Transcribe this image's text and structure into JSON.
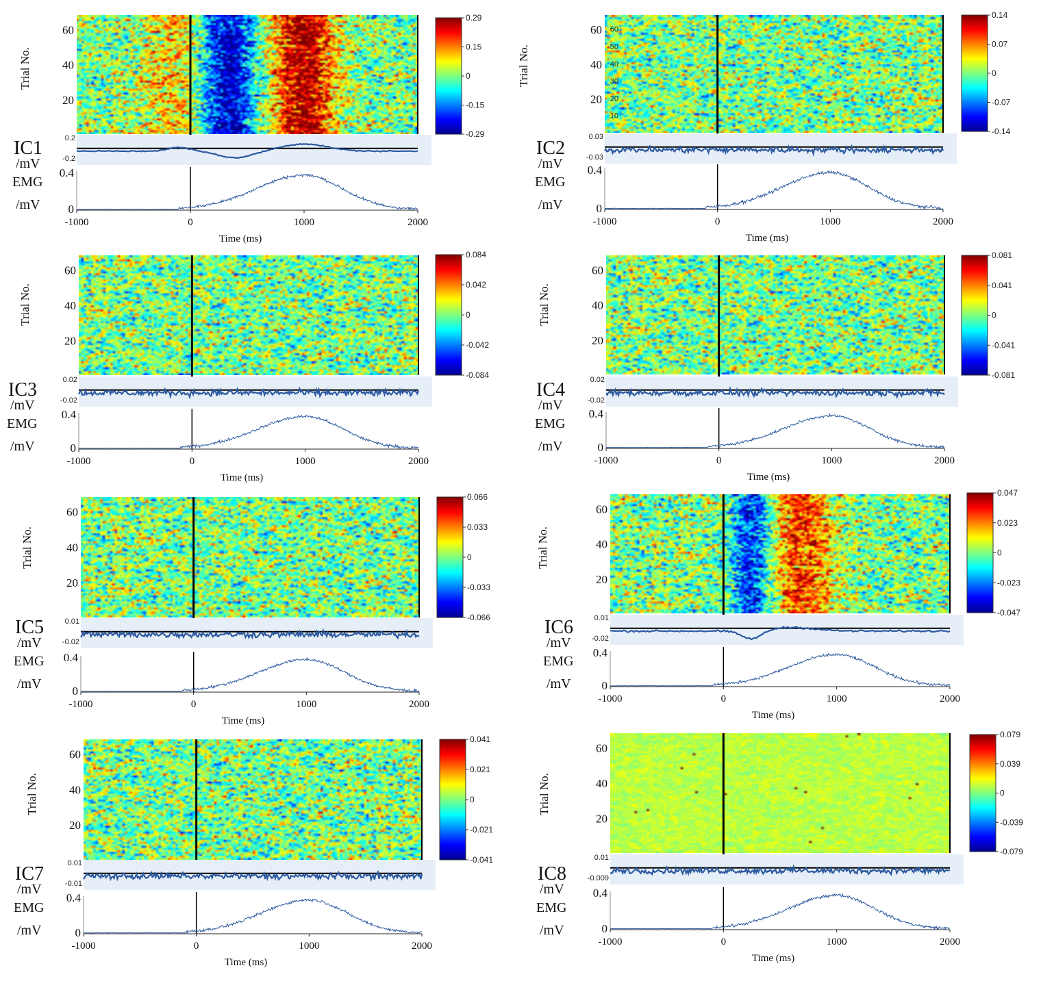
{
  "figure": {
    "panels": [
      {
        "component": "IC1",
        "unit": "/mV",
        "emg_label": "EMG",
        "emg_unit": "/mV",
        "trial_axis_label": "Trial No.",
        "trial_ticks": [
          "60",
          "40",
          "20"
        ],
        "colorbar_ticks": [
          "0.29",
          "0.15",
          "0",
          "-0.15",
          "-0.29"
        ],
        "erp_ticks": [
          "0.2",
          "-0.2"
        ],
        "emg_ticks": [
          "0.4",
          "0"
        ],
        "time_ticks": [
          "-1000",
          "0",
          "1000",
          "2000"
        ],
        "time_label": "Time (ms)",
        "pattern": "strong"
      },
      {
        "component": "IC2",
        "unit": "/mV",
        "emg_label": "EMG",
        "emg_unit": "/mV",
        "trial_axis_label": "Trial No.",
        "trial_ticks": [
          "60",
          "40",
          "20"
        ],
        "trial_minor_ticks": [
          "60",
          "50",
          "40",
          "30",
          "20",
          "10"
        ],
        "colorbar_ticks": [
          "0.14",
          "0.07",
          "0",
          "-0.07",
          "-0.14"
        ],
        "erp_ticks": [
          "0.03",
          "-0.03"
        ],
        "emg_ticks": [
          "0.4",
          "0"
        ],
        "time_ticks": [
          "-1000",
          "0",
          "1000",
          "2000"
        ],
        "time_label": "Time (ms)",
        "pattern": "noise"
      },
      {
        "component": "IC3",
        "unit": "/mV",
        "emg_label": "EMG",
        "emg_unit": "/mV",
        "trial_axis_label": "Trial No.",
        "trial_ticks": [
          "60",
          "40",
          "20"
        ],
        "colorbar_ticks": [
          "0.084",
          "0.042",
          "0",
          "-0.042",
          "-0.084"
        ],
        "erp_ticks": [
          "0.02",
          "-0.02"
        ],
        "emg_ticks": [
          "0.4",
          "0"
        ],
        "time_ticks": [
          "-1000",
          "0",
          "1000",
          "2000"
        ],
        "time_label": "Time (ms)",
        "pattern": "noise"
      },
      {
        "component": "IC4",
        "unit": "/mV",
        "emg_label": "EMG",
        "emg_unit": "/mV",
        "trial_axis_label": "Trial No.",
        "trial_ticks": [
          "60",
          "40",
          "20"
        ],
        "colorbar_ticks": [
          "0.081",
          "0.041",
          "0",
          "-0.041",
          "-0.081"
        ],
        "erp_ticks": [
          "0.02",
          "-0.02"
        ],
        "emg_ticks": [
          "0.4",
          "0"
        ],
        "time_ticks": [
          "-1000",
          "0",
          "1000",
          "2000"
        ],
        "time_label": "Time (ms)",
        "pattern": "noise"
      },
      {
        "component": "IC5",
        "unit": "/mV",
        "emg_label": "EMG",
        "emg_unit": "/mV",
        "trial_axis_label": "Trial No.",
        "trial_ticks": [
          "60",
          "40",
          "20"
        ],
        "colorbar_ticks": [
          "0.066",
          "0.033",
          "0",
          "-0.033",
          "-0.066"
        ],
        "erp_ticks": [
          "0.01",
          "-0.02"
        ],
        "emg_ticks": [
          "0.4",
          "0"
        ],
        "time_ticks": [
          "-1000",
          "0",
          "1000",
          "2000"
        ],
        "time_label": "Time (ms)",
        "pattern": "noise"
      },
      {
        "component": "IC6",
        "unit": "/mV",
        "emg_label": "EMG",
        "emg_unit": "/mV",
        "trial_axis_label": "Trial No.",
        "trial_ticks": [
          "60",
          "40",
          "20"
        ],
        "colorbar_ticks": [
          "0.047",
          "0.023",
          "0",
          "-0.023",
          "-0.047"
        ],
        "erp_ticks": [
          "0.01",
          "-0.02"
        ],
        "emg_ticks": [
          "0.4",
          "0"
        ],
        "time_ticks": [
          "-1000",
          "0",
          "1000",
          "2000"
        ],
        "time_label": "Time (ms)",
        "pattern": "medium"
      },
      {
        "component": "IC7",
        "unit": "/mV",
        "emg_label": "EMG",
        "emg_unit": "/mV",
        "trial_axis_label": "Trial No.",
        "trial_ticks": [
          "60",
          "40",
          "20"
        ],
        "colorbar_ticks": [
          "0.041",
          "0.021",
          "0",
          "-0.021",
          "-0.041"
        ],
        "erp_ticks": [
          "0.01",
          "-0.01"
        ],
        "emg_ticks": [
          "0.4",
          "0"
        ],
        "time_ticks": [
          "-1000",
          "0",
          "1000",
          "2000"
        ],
        "time_label": "Time (ms)",
        "pattern": "noise"
      },
      {
        "component": "IC8",
        "unit": "/mV",
        "emg_label": "EMG",
        "emg_unit": "/mV",
        "trial_axis_label": "Trial No.",
        "trial_ticks": [
          "60",
          "40",
          "20"
        ],
        "colorbar_ticks": [
          "0.079",
          "0.039",
          "0",
          "-0.039",
          "-0.079"
        ],
        "erp_ticks": [
          "0.01",
          "-0.009"
        ],
        "emg_ticks": [
          "0.4",
          "0"
        ],
        "time_ticks": [
          "-1000",
          "0",
          "1000",
          "2000"
        ],
        "time_label": "Time (ms)",
        "pattern": "flat"
      }
    ]
  },
  "chart_data": [
    {
      "type": "heatmap",
      "title": "IC1",
      "xlabel": "Time (ms)",
      "ylabel": "Trial No.",
      "xlim": [
        -1000,
        2000
      ],
      "ylim": [
        0,
        68
      ],
      "zlim": [
        -0.29,
        0.29
      ],
      "event_time": 0,
      "erp": {
        "ylabel": "IC1 /mV",
        "ylim": [
          -0.2,
          0.2
        ],
        "features": [
          {
            "time": 400,
            "value": -0.15
          },
          {
            "time": 1000,
            "value": 0.12
          }
        ]
      },
      "emg": {
        "ylabel": "EMG /mV",
        "ylim": [
          0,
          0.4
        ],
        "onset_time": -100,
        "peak_time": 1000,
        "peak_value": 0.36
      }
    },
    {
      "type": "heatmap",
      "title": "IC2",
      "xlabel": "Time (ms)",
      "ylabel": "Trial No.",
      "xlim": [
        -1000,
        2000
      ],
      "ylim": [
        0,
        68
      ],
      "zlim": [
        -0.14,
        0.14
      ],
      "event_time": 0,
      "erp": {
        "ylabel": "IC2 /mV",
        "ylim": [
          -0.03,
          0.03
        ]
      },
      "emg": {
        "ylabel": "EMG /mV",
        "ylim": [
          0,
          0.4
        ],
        "onset_time": -100,
        "peak_time": 1000,
        "peak_value": 0.36
      }
    },
    {
      "type": "heatmap",
      "title": "IC3",
      "xlabel": "Time (ms)",
      "ylabel": "Trial No.",
      "xlim": [
        -1000,
        2000
      ],
      "ylim": [
        0,
        68
      ],
      "zlim": [
        -0.084,
        0.084
      ],
      "event_time": 0,
      "erp": {
        "ylabel": "IC3 /mV",
        "ylim": [
          -0.02,
          0.02
        ]
      },
      "emg": {
        "ylabel": "EMG /mV",
        "ylim": [
          0,
          0.4
        ],
        "onset_time": -100,
        "peak_time": 1000,
        "peak_value": 0.36
      }
    },
    {
      "type": "heatmap",
      "title": "IC4",
      "xlabel": "Time (ms)",
      "ylabel": "Trial No.",
      "xlim": [
        -1000,
        2000
      ],
      "ylim": [
        0,
        68
      ],
      "zlim": [
        -0.081,
        0.081
      ],
      "event_time": 0,
      "erp": {
        "ylabel": "IC4 /mV",
        "ylim": [
          -0.02,
          0.02
        ]
      },
      "emg": {
        "ylabel": "EMG /mV",
        "ylim": [
          0,
          0.4
        ],
        "onset_time": -100,
        "peak_time": 1000,
        "peak_value": 0.36
      }
    },
    {
      "type": "heatmap",
      "title": "IC5",
      "xlabel": "Time (ms)",
      "ylabel": "Trial No.",
      "xlim": [
        -1000,
        2000
      ],
      "ylim": [
        0,
        68
      ],
      "zlim": [
        -0.066,
        0.066
      ],
      "event_time": 0,
      "erp": {
        "ylabel": "IC5 /mV",
        "ylim": [
          -0.02,
          0.01
        ]
      },
      "emg": {
        "ylabel": "EMG /mV",
        "ylim": [
          0,
          0.4
        ],
        "onset_time": -100,
        "peak_time": 1000,
        "peak_value": 0.36
      }
    },
    {
      "type": "heatmap",
      "title": "IC6",
      "xlabel": "Time (ms)",
      "ylabel": "Trial No.",
      "xlim": [
        -1000,
        2000
      ],
      "ylim": [
        0,
        68
      ],
      "zlim": [
        -0.047,
        0.047
      ],
      "event_time": 0,
      "erp": {
        "ylabel": "IC6 /mV",
        "ylim": [
          -0.02,
          0.01
        ],
        "features": [
          {
            "time": 250,
            "value": -0.018
          },
          {
            "time": 600,
            "value": 0.006
          }
        ]
      },
      "emg": {
        "ylabel": "EMG /mV",
        "ylim": [
          0,
          0.4
        ],
        "onset_time": -100,
        "peak_time": 1000,
        "peak_value": 0.36
      }
    },
    {
      "type": "heatmap",
      "title": "IC7",
      "xlabel": "Time (ms)",
      "ylabel": "Trial No.",
      "xlim": [
        -1000,
        2000
      ],
      "ylim": [
        0,
        68
      ],
      "zlim": [
        -0.041,
        0.041
      ],
      "event_time": 0,
      "erp": {
        "ylabel": "IC7 /mV",
        "ylim": [
          -0.01,
          0.01
        ]
      },
      "emg": {
        "ylabel": "EMG /mV",
        "ylim": [
          0,
          0.4
        ],
        "onset_time": -100,
        "peak_time": 1000,
        "peak_value": 0.36
      }
    },
    {
      "type": "heatmap",
      "title": "IC8",
      "xlabel": "Time (ms)",
      "ylabel": "Trial No.",
      "xlim": [
        -1000,
        2000
      ],
      "ylim": [
        0,
        68
      ],
      "zlim": [
        -0.079,
        0.079
      ],
      "event_time": 0,
      "erp": {
        "ylabel": "IC8 /mV",
        "ylim": [
          -0.009,
          0.01
        ]
      },
      "emg": {
        "ylabel": "EMG /mV",
        "ylim": [
          0,
          0.4
        ],
        "onset_time": -100,
        "peak_time": 1000,
        "peak_value": 0.36
      }
    }
  ]
}
